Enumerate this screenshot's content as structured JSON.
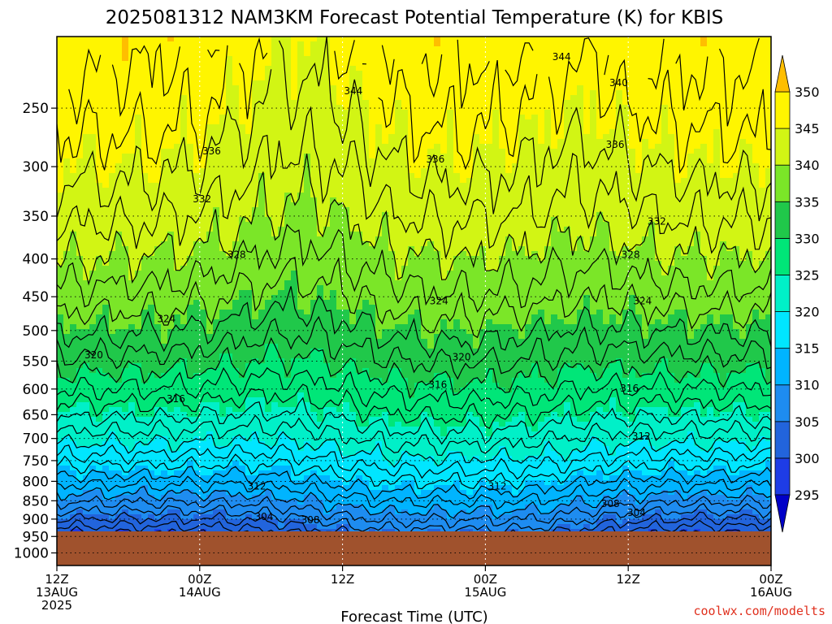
{
  "chart_data": {
    "type": "contour",
    "title": "2025081312 NAM3KM Forecast Potential Temperature (K) for KBIS",
    "xlabel": "Forecast Time (UTC)",
    "ylabel": "",
    "credit": "coolwx.com/modelts",
    "x_ticks": [
      {
        "hour": 0,
        "l1": "12Z",
        "l2": "13AUG",
        "l3": "2025"
      },
      {
        "hour": 12,
        "l1": "00Z",
        "l2": "14AUG",
        "l3": ""
      },
      {
        "hour": 24,
        "l1": "12Z",
        "l2": "",
        "l3": ""
      },
      {
        "hour": 36,
        "l1": "00Z",
        "l2": "15AUG",
        "l3": ""
      },
      {
        "hour": 48,
        "l1": "12Z",
        "l2": "",
        "l3": ""
      },
      {
        "hour": 60,
        "l1": "00Z",
        "l2": "16AUG",
        "l3": ""
      }
    ],
    "xlim": [
      0,
      60
    ],
    "y_ticks": [
      250,
      300,
      350,
      400,
      450,
      500,
      550,
      600,
      650,
      700,
      750,
      800,
      850,
      900,
      950,
      1000
    ],
    "ylim": [
      200,
      1040
    ],
    "y_scale": "log pressure (hPa)",
    "surface_pressure": 950,
    "surface_color": "#a0522d",
    "colorbar": {
      "levels": [
        295,
        300,
        305,
        310,
        315,
        320,
        325,
        330,
        335,
        340,
        345,
        350
      ],
      "colors": [
        "#0000c8",
        "#1e3ce6",
        "#2264dc",
        "#1e8cf0",
        "#00b4ff",
        "#00e6ff",
        "#00f0c8",
        "#00e678",
        "#20c84a",
        "#7be628",
        "#d2f514",
        "#fff500",
        "#ffbe00"
      ]
    },
    "contour_labels": [
      {
        "value": "344",
        "hour": 42.4,
        "p": 213
      },
      {
        "value": "340",
        "hour": 47.2,
        "p": 231
      },
      {
        "value": "344",
        "hour": 24.9,
        "p": 237
      },
      {
        "value": "336",
        "hour": 46.9,
        "p": 280
      },
      {
        "value": "336",
        "hour": 13.0,
        "p": 286
      },
      {
        "value": "336",
        "hour": 31.8,
        "p": 293
      },
      {
        "value": "332",
        "hour": 12.2,
        "p": 332
      },
      {
        "value": "332",
        "hour": 50.4,
        "p": 356
      },
      {
        "value": "328",
        "hour": 15.1,
        "p": 395
      },
      {
        "value": "328",
        "hour": 48.2,
        "p": 395
      },
      {
        "value": "324",
        "hour": 32.1,
        "p": 456
      },
      {
        "value": "324",
        "hour": 49.2,
        "p": 456
      },
      {
        "value": "324",
        "hour": 9.2,
        "p": 482
      },
      {
        "value": "320",
        "hour": 3.1,
        "p": 540
      },
      {
        "value": "320",
        "hour": 34.0,
        "p": 543
      },
      {
        "value": "316",
        "hour": 32.0,
        "p": 592
      },
      {
        "value": "316",
        "hour": 48.1,
        "p": 599
      },
      {
        "value": "316",
        "hour": 10.0,
        "p": 619
      },
      {
        "value": "312",
        "hour": 49.1,
        "p": 695
      },
      {
        "value": "312",
        "hour": 16.8,
        "p": 812
      },
      {
        "value": "312",
        "hour": 37.0,
        "p": 812
      },
      {
        "value": "308",
        "hour": 46.5,
        "p": 858
      },
      {
        "value": "304",
        "hour": 48.7,
        "p": 882
      },
      {
        "value": "304",
        "hour": 17.4,
        "p": 893
      },
      {
        "value": "308",
        "hour": 21.3,
        "p": 902
      }
    ]
  }
}
